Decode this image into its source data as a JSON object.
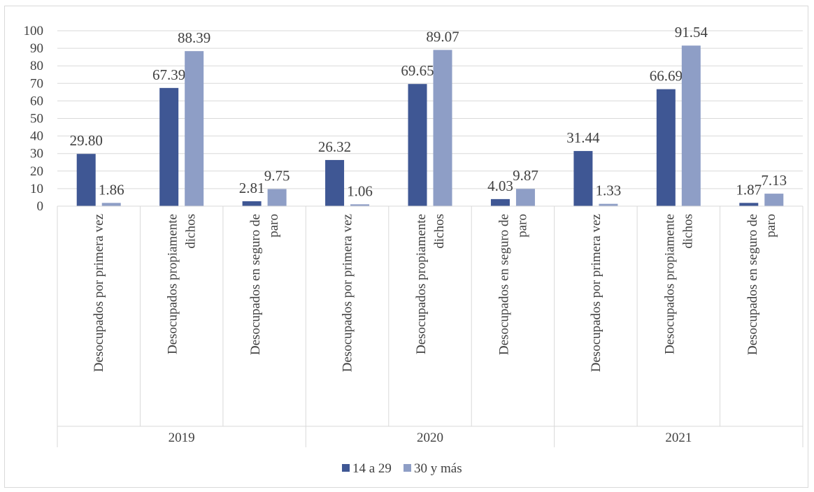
{
  "chart_data": {
    "type": "bar",
    "ylim": [
      0,
      100
    ],
    "yticks": [
      0,
      10,
      20,
      30,
      40,
      50,
      60,
      70,
      80,
      90,
      100
    ],
    "grid": true,
    "legend_position": "bottom",
    "groups": [
      "2019",
      "2020",
      "2021"
    ],
    "subcategories": [
      [
        "Desocupados por primera vez"
      ],
      [
        "Desocupados propiamente",
        "dichos"
      ],
      [
        "Desocupados en seguro de",
        "paro"
      ]
    ],
    "series": [
      {
        "name": "14 a 29",
        "color": "#3f5794",
        "values": [
          29.8,
          67.39,
          2.81,
          26.32,
          69.65,
          4.03,
          31.44,
          66.69,
          1.87
        ],
        "labels": [
          "29.80",
          "67.39",
          "2.81",
          "26.32",
          "69.65",
          "4.03",
          "31.44",
          "66.69",
          "1.87"
        ]
      },
      {
        "name": "30 y más",
        "color": "#8e9ec6",
        "values": [
          1.86,
          88.39,
          9.75,
          1.06,
          89.07,
          9.87,
          1.33,
          91.54,
          7.13
        ],
        "labels": [
          "1.86",
          "88.39",
          "9.75",
          "1.06",
          "89.07",
          "9.87",
          "1.33",
          "91.54",
          "7.13"
        ]
      }
    ]
  }
}
